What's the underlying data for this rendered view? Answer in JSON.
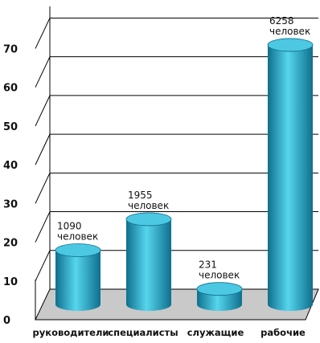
{
  "chart_data": {
    "type": "bar",
    "style": "3d-cylinder",
    "categories": [
      "руководители",
      "специалисты",
      "служащие",
      "рабочие"
    ],
    "values": [
      14,
      22,
      4,
      67
    ],
    "bar_labels": [
      {
        "value": "1090",
        "unit": "человек"
      },
      {
        "value": "1955",
        "unit": "человек"
      },
      {
        "value": "231",
        "unit": "человек"
      },
      {
        "value": "6258",
        "unit": "человек"
      }
    ],
    "y_ticks": [
      0,
      10,
      20,
      30,
      40,
      50,
      60,
      70
    ],
    "ylim": [
      0,
      73
    ],
    "grid": true
  },
  "colors": {
    "bar_light": "#56d6ee",
    "bar_mid": "#23aacb",
    "bar_dark": "#0e6f8e",
    "bar_top": "#4cc8e3",
    "floor": "#c9c9c9",
    "grid": "#000000",
    "text": "#111111"
  }
}
